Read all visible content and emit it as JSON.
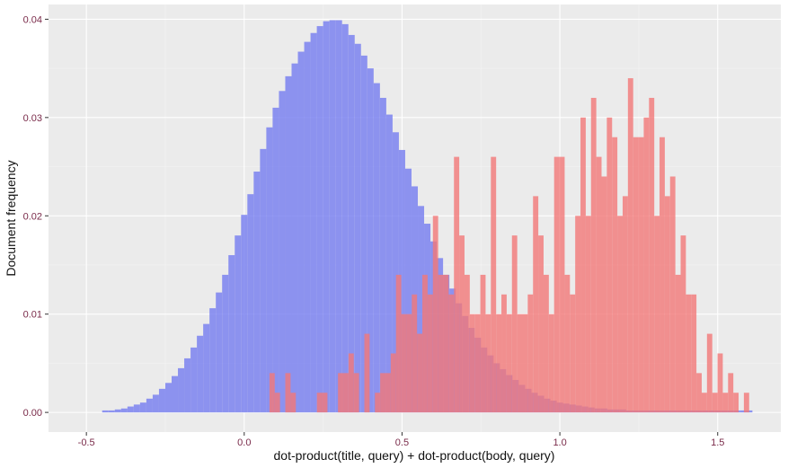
{
  "chart_data": {
    "type": "histogram",
    "xlabel": "dot-product(title, query) + dot-product(body, query)",
    "ylabel": "Document frequency",
    "xlim": [
      -0.62,
      1.7
    ],
    "ylim": [
      -0.002,
      0.0415
    ],
    "x_ticks": [
      -0.5,
      0.0,
      0.5,
      1.0,
      1.5
    ],
    "x_tick_labels": [
      "-0.5",
      "0.0",
      "0.5",
      "1.0",
      "1.5"
    ],
    "y_ticks": [
      0.0,
      0.01,
      0.02,
      0.03,
      0.04
    ],
    "y_tick_labels": [
      "0.00",
      "0.01",
      "0.02",
      "0.03",
      "0.04"
    ],
    "grid": true,
    "background": "#ebebeb",
    "series": [
      {
        "color": "#7b83f0",
        "opacity": 0.85,
        "x_start": -0.45,
        "bin_width": 0.02,
        "values": [
          0.0002,
          0.0002,
          0.0003,
          0.0004,
          0.0006,
          0.0008,
          0.001,
          0.0014,
          0.0018,
          0.0024,
          0.003,
          0.0037,
          0.0045,
          0.0055,
          0.0066,
          0.0078,
          0.009,
          0.0106,
          0.0122,
          0.014,
          0.016,
          0.018,
          0.0201,
          0.0222,
          0.0245,
          0.0268,
          0.029,
          0.031,
          0.0327,
          0.0342,
          0.0355,
          0.0367,
          0.0377,
          0.0386,
          0.0393,
          0.0398,
          0.0399,
          0.0399,
          0.0395,
          0.0384,
          0.0375,
          0.0363,
          0.035,
          0.0335,
          0.032,
          0.0303,
          0.0285,
          0.0267,
          0.0248,
          0.023,
          0.021,
          0.0192,
          0.0174,
          0.0157,
          0.014,
          0.0126,
          0.0111,
          0.0098,
          0.0086,
          0.0076,
          0.0066,
          0.0058,
          0.005,
          0.0044,
          0.0038,
          0.0033,
          0.0028,
          0.0024,
          0.002,
          0.0017,
          0.0014,
          0.0012,
          0.001,
          0.0009,
          0.0008,
          0.0007,
          0.0006,
          0.0005,
          0.0004,
          0.0004,
          0.0003,
          0.0003,
          0.0003,
          0.0002,
          0.0002,
          0.0002,
          0.0002,
          0.0002,
          0.0002,
          0.0002,
          0.0002,
          0.0002,
          0.0002,
          0.0002,
          0.0002,
          0.0002,
          0.0002,
          0.0002,
          0.0002,
          0.0002,
          0.0002,
          0.0002,
          0.0002
        ]
      },
      {
        "color": "#f27878",
        "opacity": 0.8,
        "x_start": 0.08,
        "bin_width": 0.0167,
        "values": [
          0.004,
          0.002,
          0.0,
          0.004,
          0.002,
          0.0,
          0.0,
          0.0,
          0.0,
          0.002,
          0.002,
          0.0,
          0.0,
          0.004,
          0.004,
          0.006,
          0.004,
          0.0,
          0.008,
          0.0,
          0.002,
          0.004,
          0.004,
          0.006,
          0.014,
          0.01,
          0.01,
          0.012,
          0.008,
          0.014,
          0.012,
          0.02,
          0.014,
          0.014,
          0.012,
          0.026,
          0.018,
          0.014,
          0.01,
          0.01,
          0.014,
          0.01,
          0.026,
          0.01,
          0.012,
          0.01,
          0.018,
          0.01,
          0.01,
          0.012,
          0.022,
          0.018,
          0.014,
          0.01,
          0.026,
          0.026,
          0.014,
          0.012,
          0.02,
          0.03,
          0.02,
          0.032,
          0.026,
          0.024,
          0.03,
          0.028,
          0.02,
          0.022,
          0.034,
          0.028,
          0.028,
          0.03,
          0.032,
          0.02,
          0.028,
          0.022,
          0.024,
          0.014,
          0.018,
          0.012,
          0.012,
          0.004,
          0.002,
          0.008,
          0.002,
          0.006,
          0.002,
          0.004,
          0.002,
          0.0,
          0.002
        ]
      }
    ]
  }
}
